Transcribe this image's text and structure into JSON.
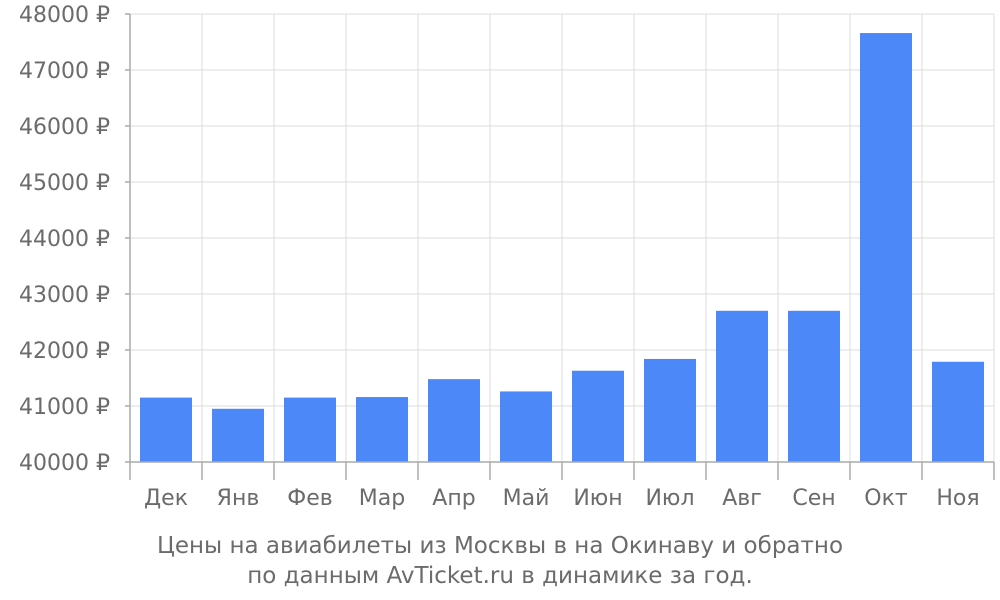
{
  "chart_data": {
    "type": "bar",
    "categories": [
      "Дек",
      "Янв",
      "Фев",
      "Мар",
      "Апр",
      "Май",
      "Июн",
      "Июл",
      "Авг",
      "Сен",
      "Окт",
      "Ноя"
    ],
    "values": [
      41150,
      40950,
      41150,
      41160,
      41480,
      41260,
      41630,
      41840,
      42700,
      42700,
      47660,
      41790
    ],
    "ylim": [
      40000,
      48000
    ],
    "yticks": [
      40000,
      41000,
      42000,
      43000,
      44000,
      45000,
      46000,
      47000,
      48000
    ],
    "ytick_labels": [
      "40000 ₽",
      "41000 ₽",
      "42000 ₽",
      "43000 ₽",
      "44000 ₽",
      "45000 ₽",
      "46000 ₽",
      "47000 ₽",
      "48000 ₽"
    ],
    "grid": true,
    "bar_color": "#4d88f8",
    "grid_color": "#dddddd",
    "axis_color": "#aaaaaa",
    "text_color": "#6b6b6b",
    "caption": [
      "Цены на авиабилеты из Москвы в на Окинаву и обратно",
      "по данным AvTicket.ru в динамике за год."
    ]
  }
}
